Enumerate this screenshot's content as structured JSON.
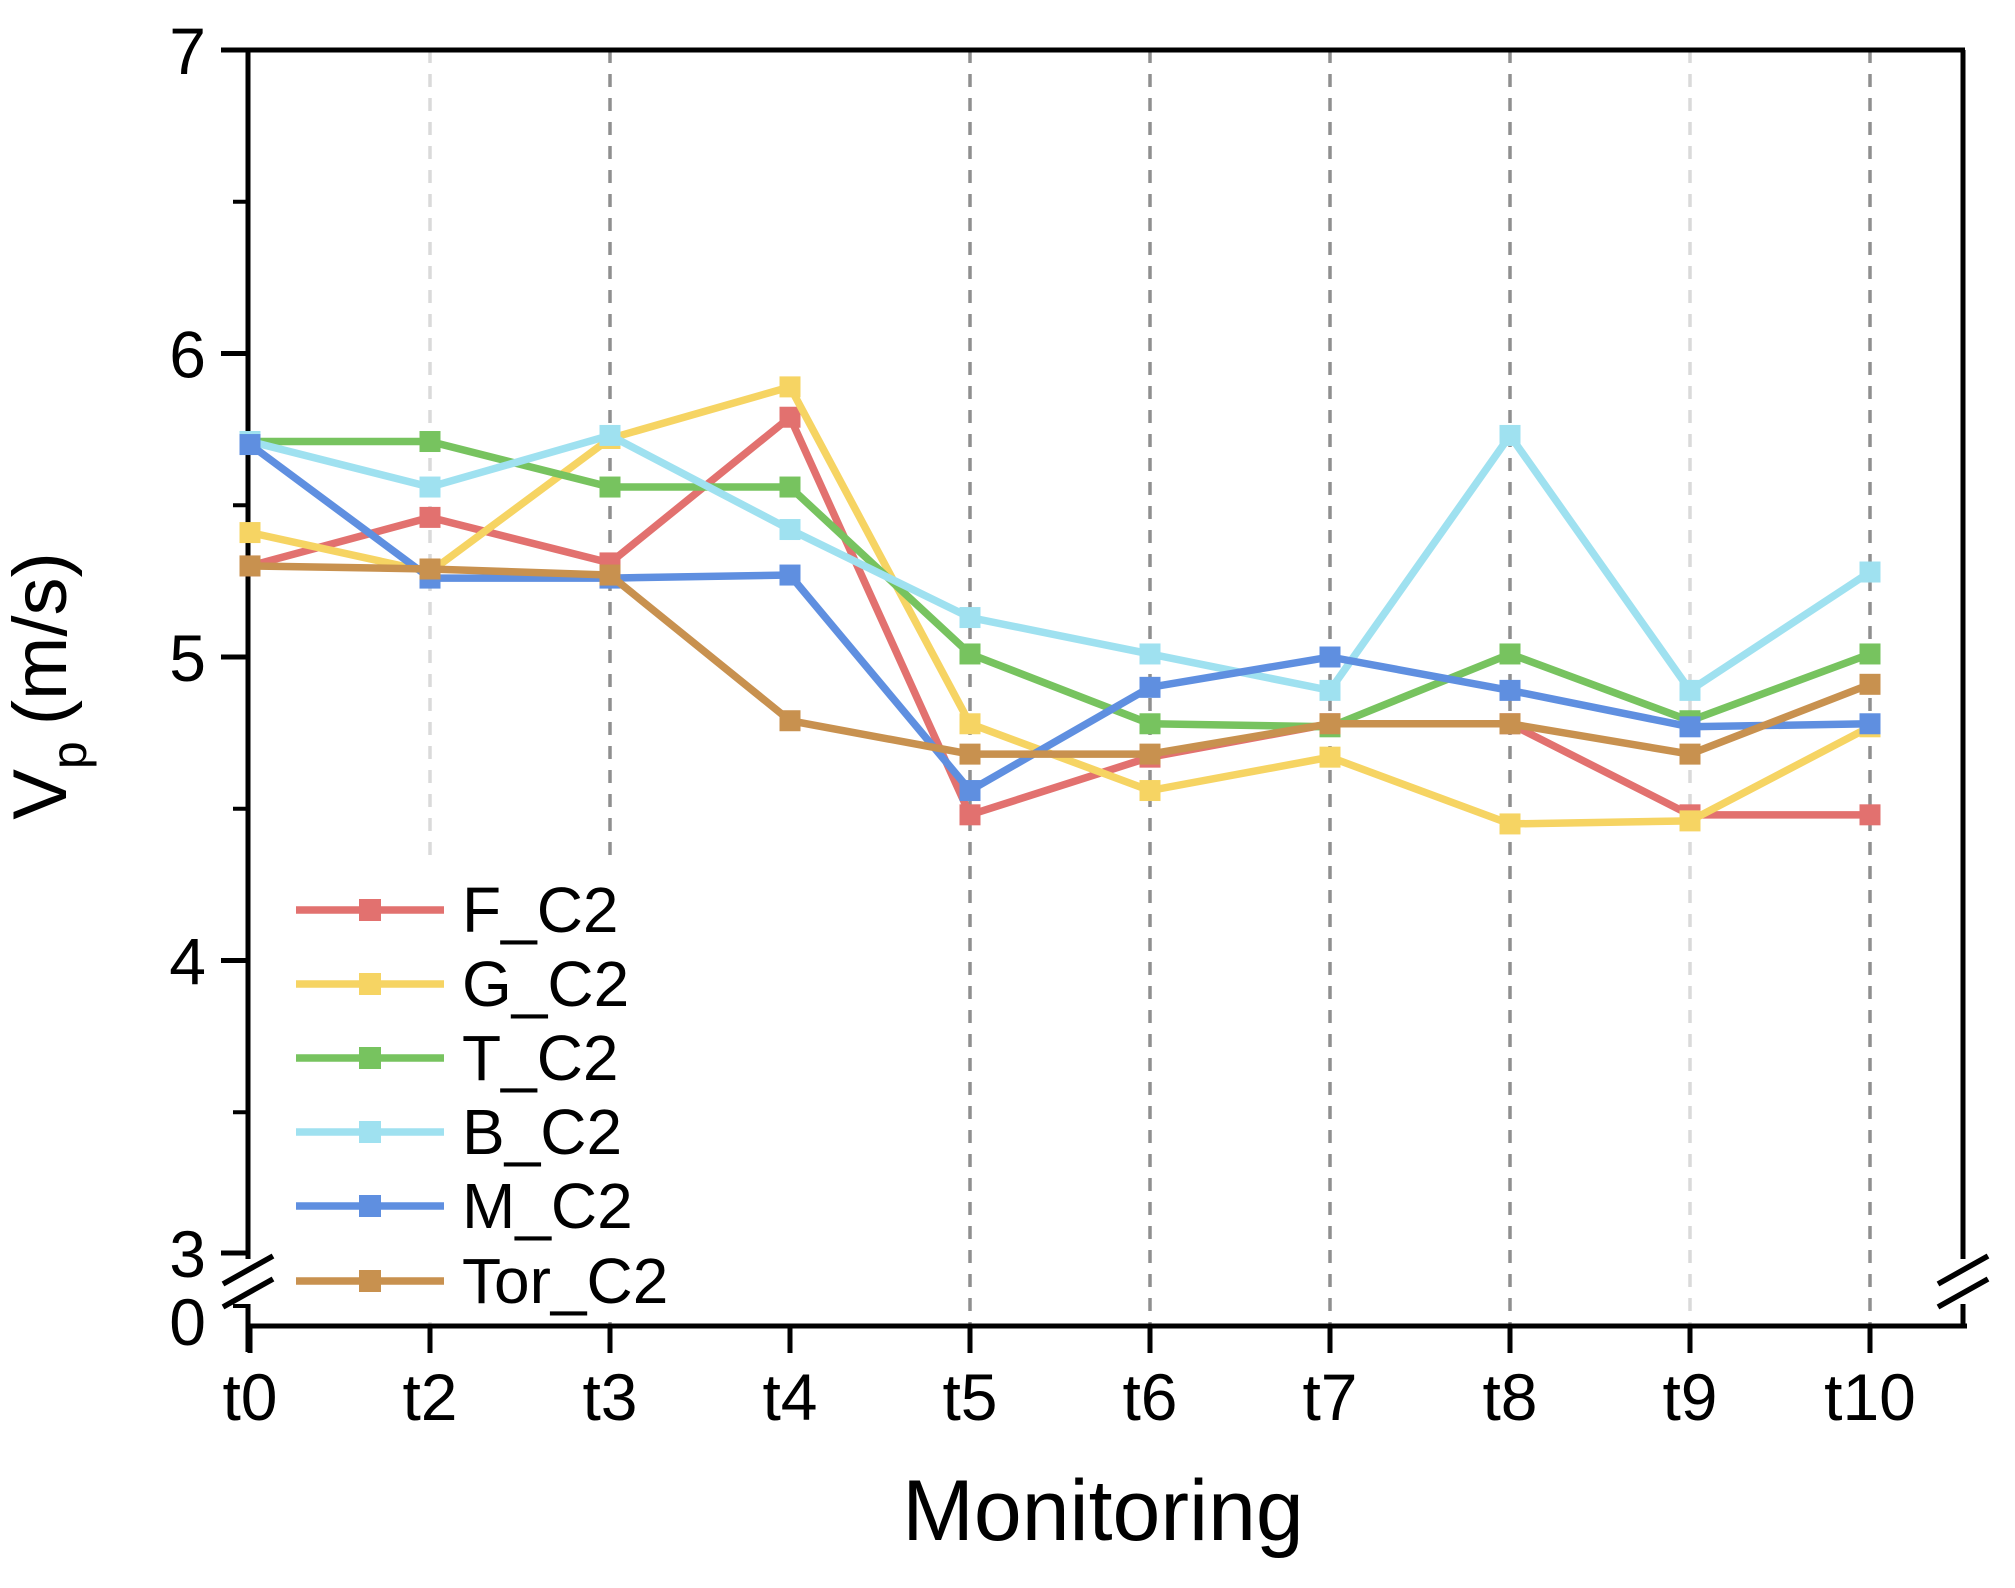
{
  "figure": {
    "ylabel_base": "V",
    "ylabel_sub": "p",
    "ylabel_units": "(m/s)",
    "origin_label": "0",
    "background": "#ffffff",
    "axis_color": "#000000"
  },
  "chart_data": {
    "type": "line",
    "title": "",
    "xlabel": "Monitoring",
    "ylabel": "Vp (m/s)",
    "categories": [
      "t0",
      "t2",
      "t3",
      "t4",
      "t5",
      "t6",
      "t7",
      "t8",
      "t9",
      "t10"
    ],
    "ylim_displayed": [
      3,
      7
    ],
    "y_axis_break": {
      "present": true,
      "upper_value": 3,
      "lower_value": 0
    },
    "y_ticks": [
      7,
      6,
      5,
      4,
      3
    ],
    "y_minor_ticks": [
      6.5,
      5.5,
      4.5,
      3.5
    ],
    "grid_on": "vertical-dotted",
    "gridlines": {
      "dark_categories": [
        "t3",
        "t5",
        "t6",
        "t7",
        "t8",
        "t10"
      ],
      "light_categories": [
        "t2",
        "t9"
      ],
      "dark_color": "#8F8F8F",
      "light_color": "#DADADA"
    },
    "legend_position": "lower-left",
    "marker": "square",
    "series": [
      {
        "name": "F_C2",
        "color": "#E2716F",
        "values": [
          5.3,
          5.46,
          5.31,
          5.79,
          4.48,
          4.67,
          4.78,
          4.78,
          4.48,
          4.48
        ]
      },
      {
        "name": "G_C2",
        "color": "#F6D463",
        "values": [
          5.41,
          5.28,
          5.72,
          5.89,
          4.78,
          4.56,
          4.67,
          4.45,
          4.46,
          4.77
        ]
      },
      {
        "name": "T_C2",
        "color": "#77C35F",
        "values": [
          5.71,
          5.71,
          5.56,
          5.56,
          5.01,
          4.78,
          4.77,
          5.01,
          4.79,
          5.01
        ]
      },
      {
        "name": "B_C2",
        "color": "#9FE1F0",
        "values": [
          5.71,
          5.56,
          5.73,
          5.42,
          5.13,
          5.01,
          4.89,
          5.73,
          4.89,
          5.28
        ]
      },
      {
        "name": "M_C2",
        "color": "#5F8FE0",
        "values": [
          5.7,
          5.26,
          5.26,
          5.27,
          4.56,
          4.9,
          5.0,
          4.89,
          4.77,
          4.78
        ]
      },
      {
        "name": "Tor_C2",
        "color": "#C8914F",
        "values": [
          5.3,
          5.29,
          5.27,
          4.79,
          4.68,
          4.68,
          4.78,
          4.78,
          4.68,
          4.91
        ]
      }
    ]
  }
}
